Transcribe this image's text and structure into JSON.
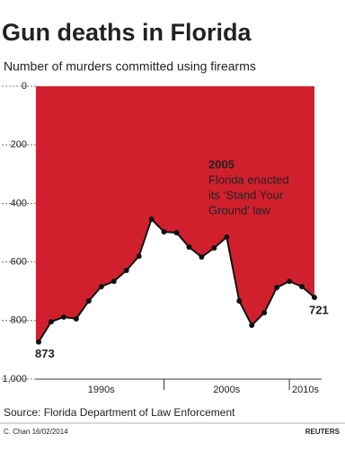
{
  "chart_data": {
    "type": "area",
    "title": "Gun deaths in Florida",
    "subtitle": "Number of murders committed using firearms",
    "x": [
      1990,
      1991,
      1992,
      1993,
      1994,
      1995,
      1996,
      1997,
      1998,
      1999,
      2000,
      2001,
      2002,
      2003,
      2004,
      2005,
      2006,
      2007,
      2008,
      2009,
      2010,
      2011,
      2012
    ],
    "values": [
      873,
      804,
      788,
      794,
      733,
      684,
      666,
      629,
      580,
      454,
      497,
      500,
      549,
      583,
      552,
      515,
      733,
      816,
      773,
      687,
      666,
      684,
      721
    ],
    "color": "#d0202e",
    "xlim": [
      1990,
      2012
    ],
    "xticks": [
      2000,
      2010
    ],
    "x_group_labels": [
      "1990s",
      "2000s",
      "2010s"
    ],
    "ylim": [
      0,
      1000
    ],
    "inverted_y": true,
    "yticks": [
      0,
      200,
      400,
      600,
      800,
      {
        "value": 1000,
        "label": "1,000"
      }
    ],
    "annotation": {
      "title": "2005",
      "text": [
        "Florida enacted",
        "its ‘Stand Your",
        "Ground’ law"
      ]
    },
    "source": "Source: Florida Department of Law Enforcement",
    "credit": "C. Chan  16/02/2014",
    "logo": "REUTERS"
  }
}
